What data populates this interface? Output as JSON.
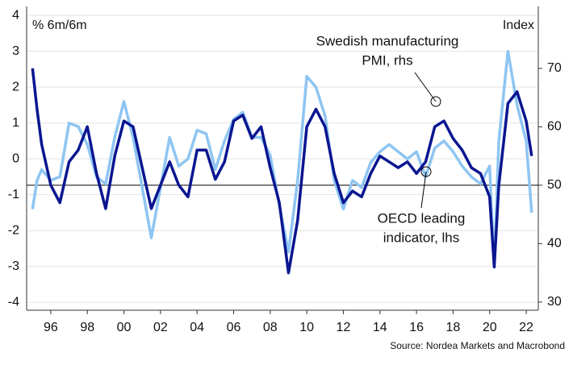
{
  "chart_data": {
    "type": "line",
    "y_label": "% 6m/6m",
    "y2_label": "Index",
    "source": "Source: Nordea Markets and Macrobond",
    "x": [
      1995.0,
      1995.25,
      1995.5,
      1996.0,
      1996.5,
      1997.0,
      1997.5,
      1998.0,
      1998.5,
      1999.0,
      1999.5,
      2000.0,
      2000.5,
      2001.0,
      2001.5,
      2002.0,
      2002.5,
      2003.0,
      2003.5,
      2004.0,
      2004.5,
      2005.0,
      2005.5,
      2006.0,
      2006.5,
      2007.0,
      2007.5,
      2008.0,
      2008.5,
      2009.0,
      2009.5,
      2010.0,
      2010.5,
      2011.0,
      2011.5,
      2012.0,
      2012.5,
      2013.0,
      2013.5,
      2014.0,
      2014.5,
      2015.0,
      2015.5,
      2016.0,
      2016.5,
      2017.0,
      2017.5,
      2018.0,
      2018.5,
      2019.0,
      2019.5,
      2020.0,
      2020.25,
      2020.5,
      2021.0,
      2021.5,
      2022.0,
      2022.3
    ],
    "series": [
      {
        "label_lines": [
          "OECD leading",
          "indicator, lhs"
        ],
        "color": "#8ec5f2",
        "axis": "y",
        "values": [
          -1.4,
          -0.6,
          -0.3,
          -0.6,
          -0.5,
          1.0,
          0.9,
          0.4,
          -0.5,
          -0.7,
          0.6,
          1.6,
          0.6,
          -0.8,
          -2.2,
          -0.8,
          0.6,
          -0.2,
          0.0,
          0.8,
          0.7,
          -0.3,
          0.5,
          1.1,
          1.3,
          0.6,
          0.6,
          0.1,
          -1.3,
          -2.6,
          -0.6,
          2.3,
          2.0,
          1.2,
          -0.6,
          -1.4,
          -0.6,
          -0.8,
          -0.1,
          0.2,
          0.4,
          0.2,
          0.0,
          0.2,
          -0.5,
          0.3,
          0.5,
          0.2,
          -0.2,
          -0.5,
          -0.7,
          -0.2,
          -3.0,
          0.5,
          3.0,
          1.5,
          0.5,
          -1.5
        ]
      },
      {
        "label_lines": [
          "Swedish manufacturing",
          "PMI, rhs"
        ],
        "color": "#0a1690",
        "axis": "y2",
        "values": [
          70,
          63,
          57,
          50,
          47,
          54,
          56,
          60,
          52,
          46,
          55,
          61,
          60,
          53,
          46,
          50,
          54,
          50,
          48,
          56,
          56,
          51,
          54,
          61,
          62,
          58,
          60,
          53,
          47,
          35,
          44,
          60,
          63,
          60,
          52,
          47,
          49,
          48,
          52,
          55,
          54,
          53,
          54,
          52,
          54,
          60,
          61,
          58,
          56,
          53,
          52,
          48,
          36,
          50,
          64,
          66,
          61,
          55
        ]
      }
    ],
    "xlim": [
      1994.68,
      2022.66
    ],
    "xticks": [
      {
        "value": 1996,
        "label": "96"
      },
      {
        "value": 1998,
        "label": "98"
      },
      {
        "value": 2000,
        "label": "00"
      },
      {
        "value": 2002,
        "label": "02"
      },
      {
        "value": 2004,
        "label": "04"
      },
      {
        "value": 2006,
        "label": "06"
      },
      {
        "value": 2008,
        "label": "08"
      },
      {
        "value": 2010,
        "label": "10"
      },
      {
        "value": 2012,
        "label": "12"
      },
      {
        "value": 2014,
        "label": "14"
      },
      {
        "value": 2016,
        "label": "16"
      },
      {
        "value": 2018,
        "label": "18"
      },
      {
        "value": 2020,
        "label": "20"
      },
      {
        "value": 2022,
        "label": "22"
      }
    ],
    "ylim": [
      -4.22,
      4.25
    ],
    "yticks": [
      -4,
      -3,
      -2,
      -1,
      0,
      1,
      2,
      3,
      4
    ],
    "y2lim": [
      28.6,
      80.6
    ],
    "y2ticks": [
      30,
      40,
      50,
      60,
      70
    ],
    "reference_line_y2": 50,
    "grid": true
  }
}
